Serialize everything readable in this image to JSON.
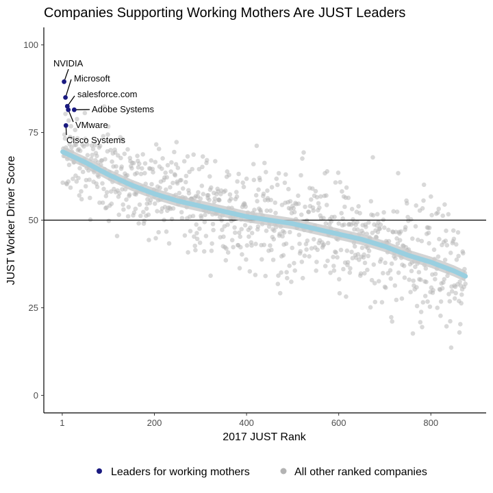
{
  "chart_data": {
    "type": "scatter",
    "title": "Companies Supporting Working Mothers Are JUST Leaders",
    "xlabel": "2017 JUST Rank",
    "ylabel": "JUST Worker Driver Score",
    "xlim": [
      -40,
      920
    ],
    "ylim": [
      -5,
      105
    ],
    "xticks": [
      0,
      200,
      400,
      600,
      800
    ],
    "xtick_labels": [
      "1",
      "200",
      "400",
      "600",
      "800"
    ],
    "yticks": [
      0,
      25,
      50,
      75,
      100
    ],
    "ytick_labels": [
      "0",
      "25",
      "50",
      "75",
      "100"
    ],
    "grid": false,
    "reference_line_y": 50,
    "legend_position": "bottom",
    "colors": {
      "leaders": "#1a1a80",
      "others": "#b3b3b3",
      "trend": "#99cfe0",
      "trend_band": "#c9c9c9"
    },
    "series": [
      {
        "name": "Leaders for working mothers",
        "points": [
          {
            "label": "NVIDIA",
            "x": 4,
            "y": 89.5
          },
          {
            "label": "Microsoft",
            "x": 7,
            "y": 85
          },
          {
            "label": "salesforce.com",
            "x": 11,
            "y": 82.5
          },
          {
            "label": "Adobe Systems",
            "x": 26,
            "y": 81.5
          },
          {
            "label": "VMware",
            "x": 13,
            "y": 81.5
          },
          {
            "label": "Cisco Systems",
            "x": 8,
            "y": 77
          }
        ]
      },
      {
        "name": "All other ranked companies",
        "n": 875,
        "trend": [
          [
            1,
            69.5
          ],
          [
            50,
            66.5
          ],
          [
            100,
            63
          ],
          [
            150,
            60
          ],
          [
            200,
            57.5
          ],
          [
            250,
            55.5
          ],
          [
            300,
            54
          ],
          [
            350,
            52.5
          ],
          [
            400,
            51
          ],
          [
            450,
            50
          ],
          [
            500,
            49
          ],
          [
            550,
            47.5
          ],
          [
            600,
            46
          ],
          [
            650,
            44.5
          ],
          [
            700,
            42.5
          ],
          [
            750,
            40
          ],
          [
            800,
            38
          ],
          [
            850,
            35.5
          ],
          [
            875,
            34
          ]
        ]
      }
    ]
  },
  "legend": {
    "items": [
      {
        "label": "Leaders for working mothers",
        "color": "#1a1a80"
      },
      {
        "label": "All other ranked companies",
        "color": "#b3b3b3"
      }
    ]
  }
}
